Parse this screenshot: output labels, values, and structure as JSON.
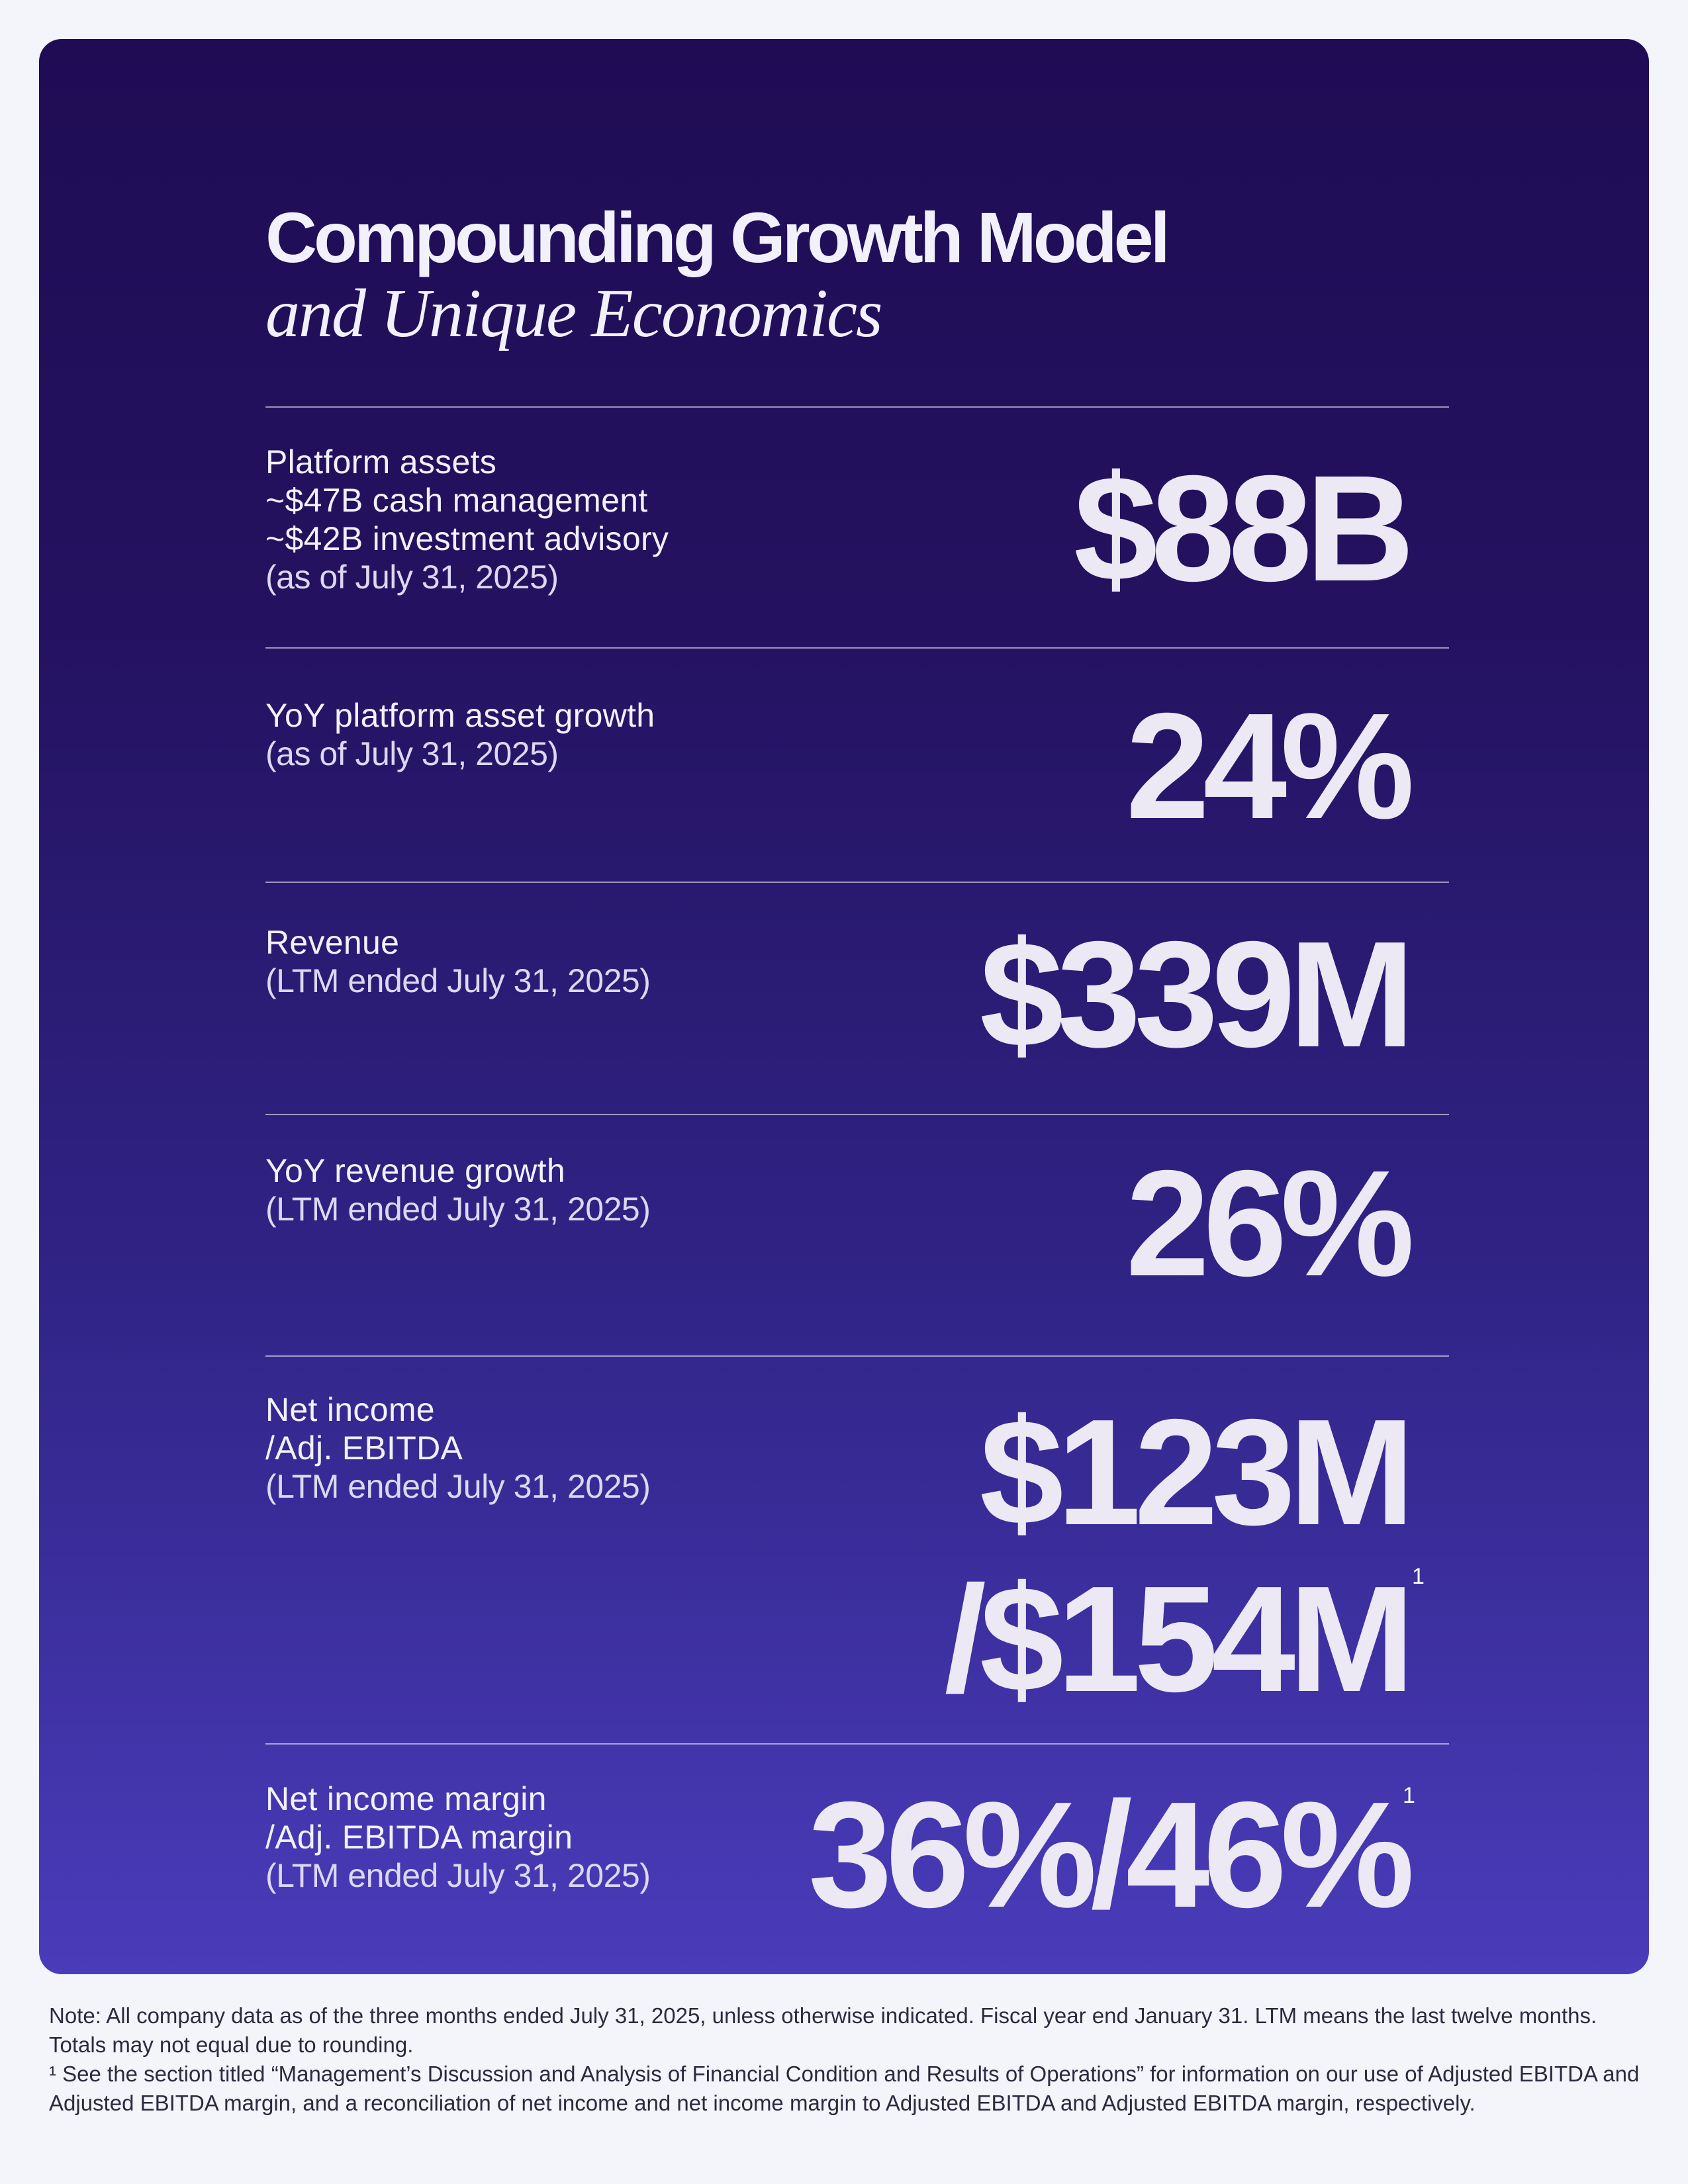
{
  "title": {
    "line1": "Compounding Growth Model",
    "line2": "and Unique Economics"
  },
  "rows": [
    {
      "label_lines": [
        "Platform assets",
        "~$47B cash management",
        "~$42B investment advisory"
      ],
      "note": "(as of July 31, 2025)",
      "value": "$88B"
    },
    {
      "label_lines": [
        "YoY platform asset growth"
      ],
      "note": "(as of July 31, 2025)",
      "value": "24%"
    },
    {
      "label_lines": [
        "Revenue"
      ],
      "note": "(LTM ended July 31, 2025)",
      "value": "$339M"
    },
    {
      "label_lines": [
        "YoY revenue growth"
      ],
      "note": "(LTM ended July 31, 2025)",
      "value": "26%"
    },
    {
      "label_lines": [
        "Net income",
        "/Adj. EBITDA"
      ],
      "note": "(LTM ended July 31, 2025)",
      "value_lines": [
        "$123M",
        "/$154M"
      ],
      "footnote_mark": "1"
    },
    {
      "label_lines": [
        "Net income margin",
        "/Adj. EBITDA margin"
      ],
      "note": "(LTM ended July 31, 2025)",
      "value": "36%/46%",
      "footnote_mark": "1"
    }
  ],
  "footer": {
    "note": "Note: All company data as of the three months ended July 31, 2025, unless otherwise indicated. Fiscal year end January 31. LTM means the last twelve months. Totals may not equal due to rounding.",
    "footnote": "¹ See the section titled “Management’s Discussion and Analysis of Financial Condition and Results of Operations” for information on our use of Adjusted EBITDA and Adjusted EBITDA margin, and a reconciliation of net income and net income margin to Adjusted EBITDA and Adjusted EBITDA margin, respectively."
  },
  "colors": {
    "page_background": "#f4f4fb",
    "card_top": "#1f0c55",
    "card_bottom": "#4a3cba",
    "text_light": "#f2f0fb"
  }
}
